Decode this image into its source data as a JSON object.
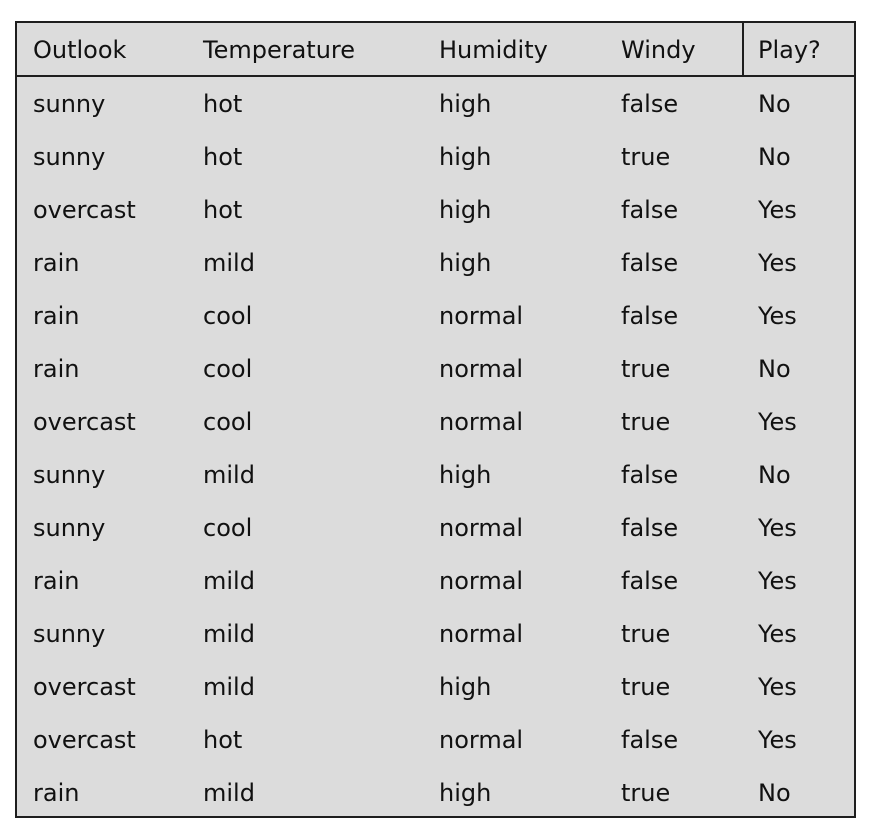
{
  "table": {
    "columns": [
      "Outlook",
      "Temperature",
      "Humidity",
      "Windy",
      "Play?"
    ],
    "rows": [
      [
        "sunny",
        "hot",
        "high",
        "false",
        "No"
      ],
      [
        "sunny",
        "hot",
        "high",
        "true",
        "No"
      ],
      [
        "overcast",
        "hot",
        "high",
        "false",
        "Yes"
      ],
      [
        "rain",
        "mild",
        "high",
        "false",
        "Yes"
      ],
      [
        "rain",
        "cool",
        "normal",
        "false",
        "Yes"
      ],
      [
        "rain",
        "cool",
        "normal",
        "true",
        "No"
      ],
      [
        "overcast",
        "cool",
        "normal",
        "true",
        "Yes"
      ],
      [
        "sunny",
        "mild",
        "high",
        "false",
        "No"
      ],
      [
        "sunny",
        "cool",
        "normal",
        "false",
        "Yes"
      ],
      [
        "rain",
        "mild",
        "normal",
        "false",
        "Yes"
      ],
      [
        "sunny",
        "mild",
        "normal",
        "true",
        "Yes"
      ],
      [
        "overcast",
        "mild",
        "high",
        "true",
        "Yes"
      ],
      [
        "overcast",
        "hot",
        "normal",
        "false",
        "Yes"
      ],
      [
        "rain",
        "mild",
        "high",
        "true",
        "No"
      ]
    ]
  }
}
